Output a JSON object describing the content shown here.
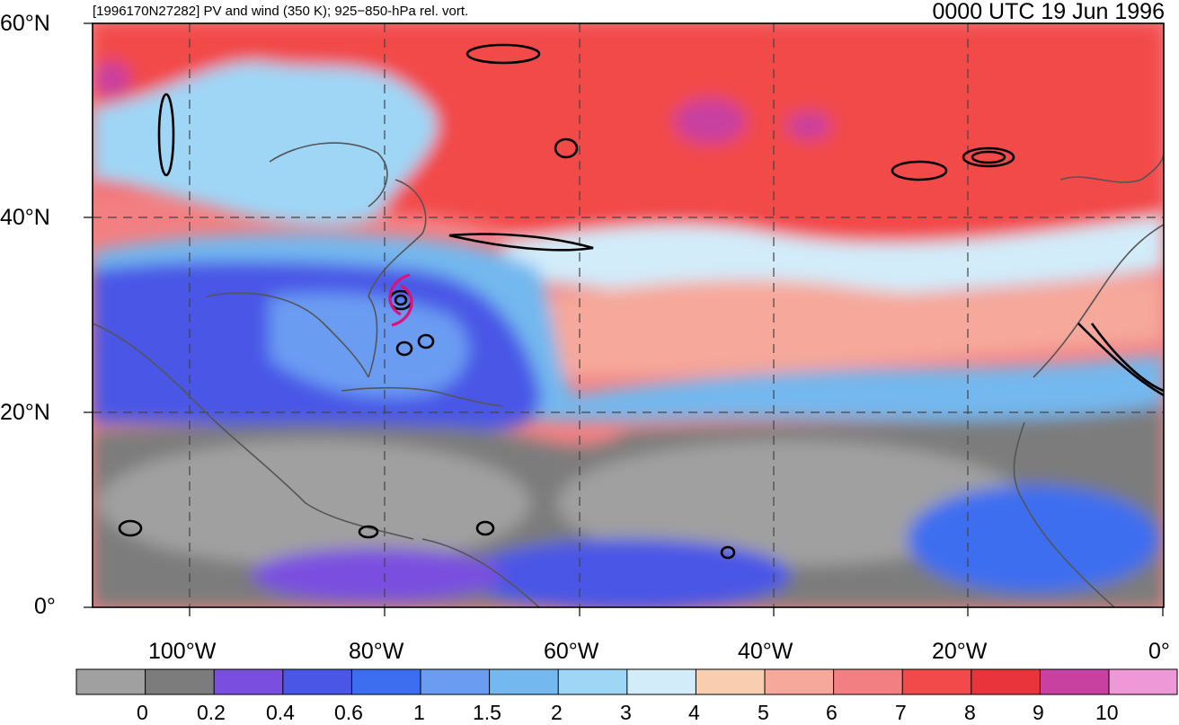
{
  "header": {
    "subtitle": "[1996170N27282] PV and wind (350 K); 925−850-hPa rel. vort.",
    "timestamp": "0000 UTC 19 Jun 1996"
  },
  "map": {
    "lat_labels": [
      "60°N",
      "40°N",
      "20°N",
      "0°"
    ],
    "lon_labels": [
      "100°W",
      "80°W",
      "60°W",
      "40°W",
      "20°W",
      "0°"
    ]
  },
  "colorbar": {
    "tick_labels": [
      "0",
      "0.2",
      "0.4",
      "0.6",
      "1",
      "1.5",
      "2",
      "3",
      "4",
      "5",
      "6",
      "7",
      "8",
      "9",
      "10"
    ],
    "colors": [
      "#a0a0a0",
      "#7c7c7c",
      "#7a4fe0",
      "#4a56e6",
      "#3d6ef0",
      "#6a9cf2",
      "#73b8ee",
      "#9fd6f6",
      "#d2ecfa",
      "#f8cdb0",
      "#f6a89a",
      "#f28082",
      "#f24a4a",
      "#e8343a",
      "#c840a0",
      "#ee98d8"
    ]
  }
}
